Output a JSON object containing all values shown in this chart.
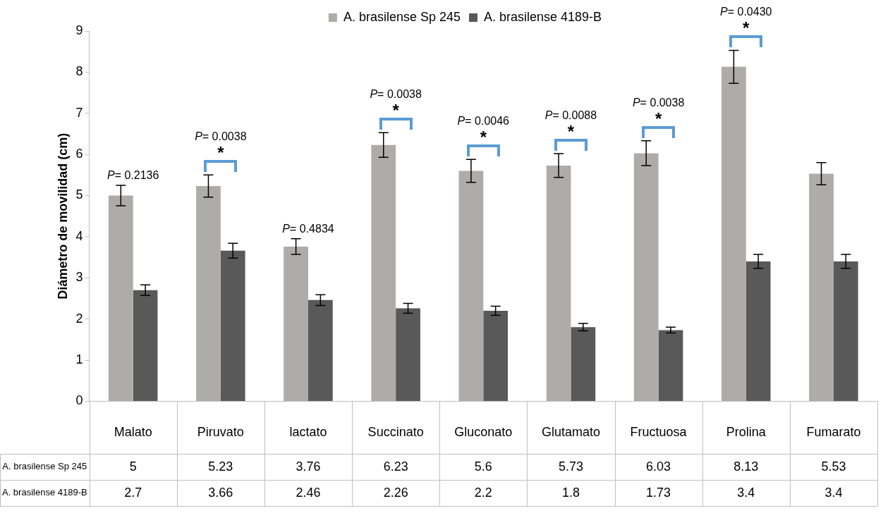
{
  "chart_data": {
    "type": "bar",
    "categories": [
      "Malato",
      "Piruvato",
      "lactato",
      "Succinato",
      "Gluconato",
      "Glutamato",
      "Fructuosa",
      "Prolina",
      "Fumarato"
    ],
    "series": [
      {
        "name": "A. brasilense Sp 245",
        "color": "#aeabab",
        "values": [
          5,
          5.23,
          3.76,
          6.23,
          5.6,
          5.73,
          6.03,
          8.13,
          5.53
        ],
        "errors": [
          0.25,
          0.27,
          0.19,
          0.3,
          0.28,
          0.29,
          0.3,
          0.4,
          0.27
        ]
      },
      {
        "name": "A. brasilense 4189-B",
        "color": "#595959",
        "values": [
          2.7,
          3.66,
          2.46,
          2.26,
          2.2,
          1.8,
          1.73,
          3.4,
          3.4
        ],
        "errors": [
          0.13,
          0.18,
          0.13,
          0.12,
          0.11,
          0.09,
          0.07,
          0.17,
          0.17
        ]
      }
    ],
    "ylabel": "Diámetro de movilidad (cm)",
    "ylim": [
      0,
      9
    ],
    "yticks": [
      0,
      1,
      2,
      3,
      4,
      5,
      6,
      7,
      8,
      9
    ],
    "grid": false,
    "legend": "top",
    "data_labels": true,
    "annotations": [
      {
        "text": "P= 0.2136",
        "x": "Malato",
        "y": 5
      },
      {
        "text": "*",
        "x": "Piruvato",
        "y": 5.23
      },
      "P= 0.0038",
      {
        "text": "P= 0.4834",
        "x": "lactato",
        "y": 3.76
      },
      {
        "text": "*",
        "x": "Succinato",
        "y": 6.23
      },
      "P= 0.0038",
      {
        "text": "*",
        "x": "Gluconato",
        "y": 5.6
      },
      "P= 0.0046",
      {
        "text": "*",
        "x": "Glutamato",
        "y": 5.73
      },
      "P= 0.0088",
      {
        "text": "*",
        "x": "Fructuosa",
        "y": 6.03
      },
      "P= 0.0038",
      {
        "text": "*",
        "x": "Prolina",
        "y": 8.13
      },
      "P= 0.0430"
    ]
  }
}
